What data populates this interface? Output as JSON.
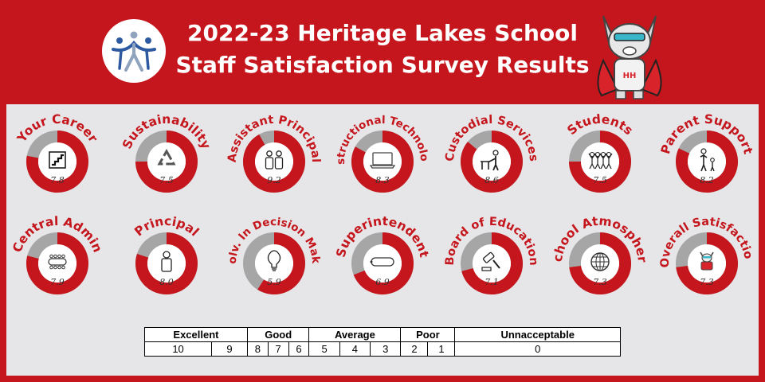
{
  "header": {
    "title_line1": "2022-23 Heritage Lakes School",
    "title_line2": "Staff Satisfaction Survey Results"
  },
  "colors": {
    "accent": "#c4161c",
    "ring_empty": "#a6a6a6",
    "panel": "#e6e6e8",
    "logo_blue": "#2d5aa0"
  },
  "chart_data": {
    "type": "pie",
    "max": 10,
    "items": [
      {
        "label": "Your Career",
        "value": 7.8,
        "icon": "stairs-icon"
      },
      {
        "label": "Sustainability",
        "value": 7.5,
        "icon": "recycle-icon"
      },
      {
        "label": "Assistant Principal",
        "value": 9.2,
        "icon": "two-people-icon"
      },
      {
        "label": "Instructional Technology",
        "value": 8.3,
        "icon": "laptop-icon"
      },
      {
        "label": "Custodial Services",
        "value": 8.6,
        "icon": "custodian-icon"
      },
      {
        "label": "Students",
        "value": 7.5,
        "icon": "students-icon"
      },
      {
        "label": "Parent Support",
        "value": 8.2,
        "icon": "parent-child-icon"
      },
      {
        "label": "Central Admin",
        "value": 7.9,
        "icon": "meeting-table-icon"
      },
      {
        "label": "Principal",
        "value": 8.0,
        "icon": "person-icon"
      },
      {
        "label": "Involv. In Decision Making",
        "value": 5.9,
        "icon": "lightbulb-icon"
      },
      {
        "label": "Superintendent",
        "value": 6.9,
        "icon": "pill-icon"
      },
      {
        "label": "Board of Education",
        "value": 7.1,
        "icon": "gavel-icon"
      },
      {
        "label": "School Atmosphere",
        "value": 7.3,
        "icon": "globe-icon"
      },
      {
        "label": "Overall Satisfaction",
        "value": 7.3,
        "icon": "mascot-icon"
      }
    ]
  },
  "scale": {
    "categories": [
      {
        "label": "Excellent",
        "span": 2
      },
      {
        "label": "Good",
        "span": 3
      },
      {
        "label": "Average",
        "span": 3
      },
      {
        "label": "Poor",
        "span": 2
      },
      {
        "label": "Unnacceptable",
        "span": 1
      }
    ],
    "values": [
      "10",
      "9",
      "8",
      "7",
      "6",
      "5",
      "4",
      "3",
      "2",
      "1",
      "0"
    ]
  }
}
